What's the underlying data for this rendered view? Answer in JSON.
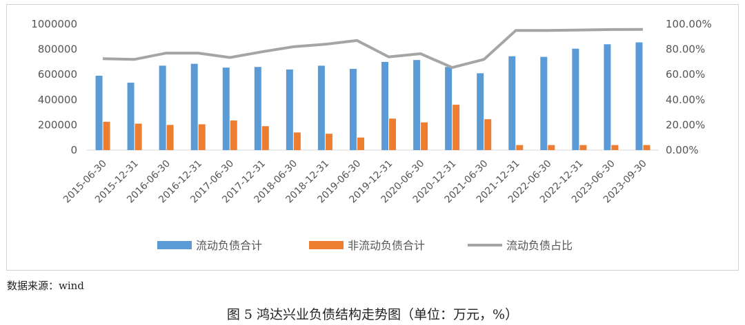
{
  "chart_data": {
    "type": "bar",
    "categories": [
      "2015-06-30",
      "2015-12-31",
      "2016-06-30",
      "2016-12-31",
      "2017-06-30",
      "2017-12-31",
      "2018-06-30",
      "2018-12-31",
      "2019-06-30",
      "2019-12-31",
      "2020-06-30",
      "2020-12-31",
      "2021-06-30",
      "2021-12-31",
      "2022-06-30",
      "2022-12-31",
      "2023-06-30",
      "2023-09-30"
    ],
    "series": [
      {
        "name": "流动负债合计",
        "type": "bar",
        "axis": "left",
        "color": "#5b9bd5",
        "values": [
          590000,
          535000,
          670000,
          685000,
          655000,
          660000,
          640000,
          670000,
          645000,
          700000,
          715000,
          660000,
          610000,
          745000,
          740000,
          805000,
          840000,
          855000
        ]
      },
      {
        "name": "非流动负债合计",
        "type": "bar",
        "axis": "left",
        "color": "#ed7d31",
        "values": [
          225000,
          210000,
          200000,
          205000,
          235000,
          190000,
          140000,
          130000,
          100000,
          250000,
          220000,
          360000,
          245000,
          40000,
          40000,
          40000,
          40000,
          40000
        ]
      },
      {
        "name": "流动负债占比",
        "type": "line",
        "axis": "right",
        "color": "#a5a5a5",
        "values": [
          72.5,
          72.0,
          77.0,
          77.0,
          73.5,
          78.0,
          82.0,
          84.0,
          87.0,
          74.0,
          76.5,
          65.5,
          72.0,
          95.0,
          95.0,
          95.3,
          95.7,
          95.8
        ]
      }
    ],
    "y_left": {
      "ylim": [
        0,
        1000000
      ],
      "ticks": [
        "0",
        "200000",
        "400000",
        "600000",
        "800000",
        "1000000"
      ]
    },
    "y_right": {
      "ylim": [
        0,
        100
      ],
      "ticks": [
        "0.00%",
        "20.00%",
        "40.00%",
        "60.00%",
        "80.00%",
        "100.00%"
      ]
    },
    "grid": false,
    "legend_position": "bottom"
  },
  "source_note": "数据来源：wind",
  "figure_caption": "图 5   鸿达兴业负债结构走势图（单位：万元，%）"
}
